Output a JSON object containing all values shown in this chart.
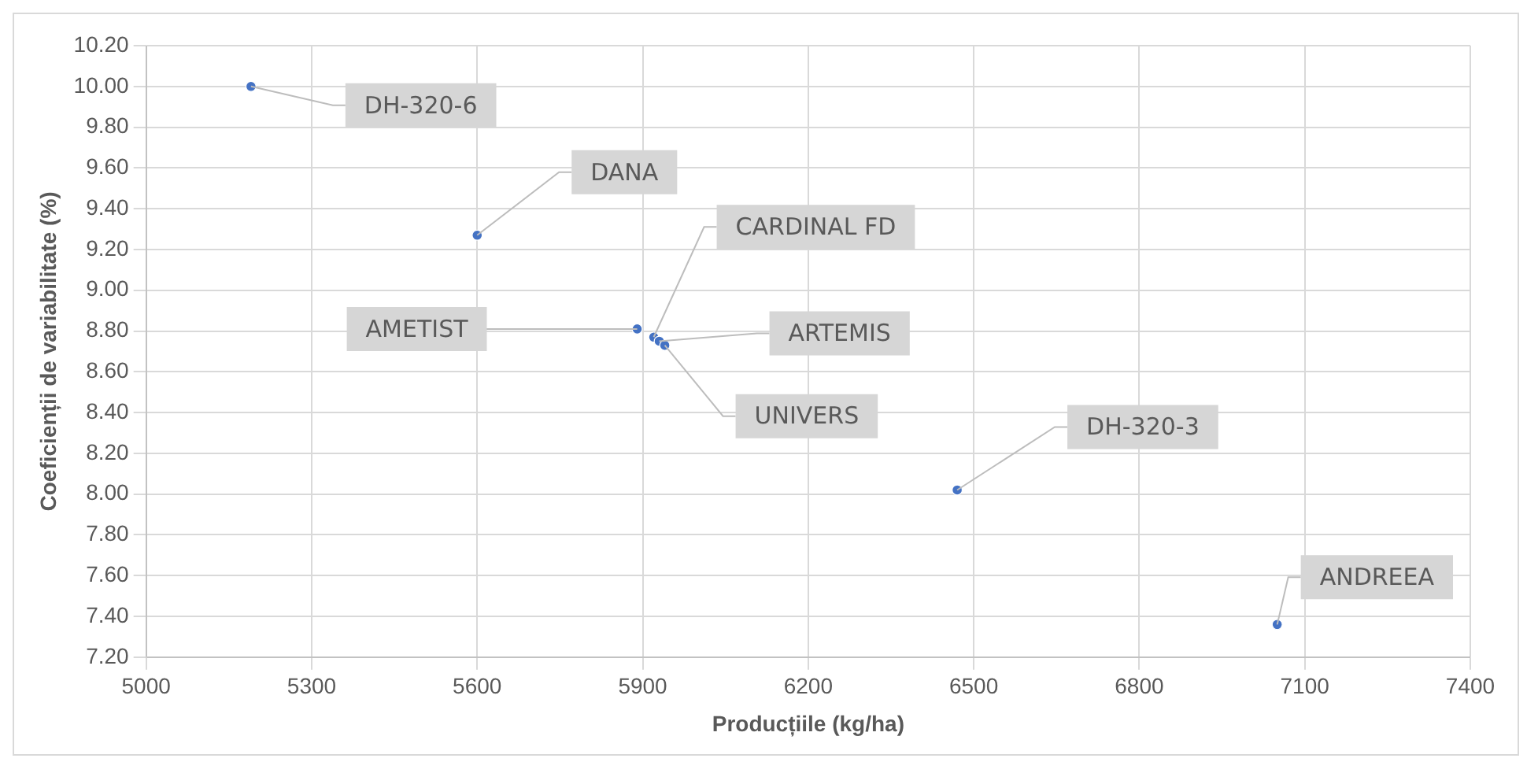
{
  "chart_data": {
    "type": "scatter",
    "xlabel": "Producțiile (kg/ha)",
    "ylabel": "Coeficienții de variabilitate (%)",
    "x": [
      5190,
      5600,
      5890,
      5920,
      5930,
      5940,
      6470,
      7050
    ],
    "series": [
      {
        "color": "#4472c4",
        "values": [
          10.0,
          9.27,
          8.81,
          8.77,
          8.75,
          8.73,
          8.02,
          7.36
        ]
      }
    ],
    "annotations": [
      {
        "text": "DH-320-6",
        "x": 5190,
        "y": 10.0
      },
      {
        "text": "DANA",
        "x": 5600,
        "y": 9.27
      },
      {
        "text": "AMETIST",
        "x": 5890,
        "y": 8.81
      },
      {
        "text": "CARDINAL FD",
        "x": 5920,
        "y": 8.77
      },
      {
        "text": "ARTEMIS",
        "x": 5930,
        "y": 8.75
      },
      {
        "text": "UNIVERS",
        "x": 5940,
        "y": 8.73
      },
      {
        "text": "DH-320-3",
        "x": 6470,
        "y": 8.02
      },
      {
        "text": "ANDREEA",
        "x": 7050,
        "y": 7.36
      }
    ],
    "xlim": [
      5000,
      7400
    ],
    "xticks": [
      5000,
      5300,
      5600,
      5900,
      6200,
      6500,
      6800,
      7100,
      7400
    ],
    "ylim": [
      7.2,
      10.2
    ],
    "yticks": [
      {
        "value": 7.2,
        "label": "7.20"
      },
      {
        "value": 7.4,
        "label": "7.40"
      },
      {
        "value": 7.6,
        "label": "7.60"
      },
      {
        "value": 7.8,
        "label": "7.80"
      },
      {
        "value": 8.0,
        "label": "8.00"
      },
      {
        "value": 8.2,
        "label": "8.20"
      },
      {
        "value": 8.4,
        "label": "8.40"
      },
      {
        "value": 8.6,
        "label": "8.60"
      },
      {
        "value": 8.8,
        "label": "8.80"
      },
      {
        "value": 9.0,
        "label": "9.00"
      },
      {
        "value": 9.2,
        "label": "9.20"
      },
      {
        "value": 9.4,
        "label": "9.40"
      },
      {
        "value": 9.6,
        "label": "9.60"
      },
      {
        "value": 9.8,
        "label": "9.80"
      },
      {
        "value": 10.0,
        "label": "10.00"
      },
      {
        "value": 10.2,
        "label": "10.20"
      }
    ],
    "grid": true,
    "marker": "circle",
    "legend": false
  }
}
